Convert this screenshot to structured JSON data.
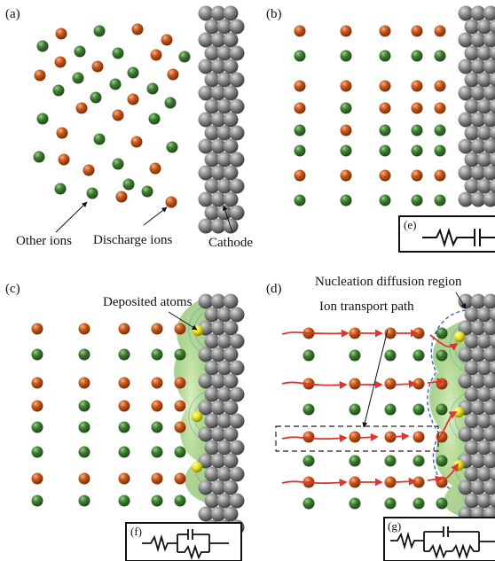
{
  "panels": {
    "a": {
      "label": "(a)"
    },
    "b": {
      "label": "(b)"
    },
    "c": {
      "label": "(c)"
    },
    "d": {
      "label": "(d)"
    }
  },
  "labels": {
    "other_ions": "Other ions",
    "discharge_ions": "Discharge ions",
    "cathode": "Cathode",
    "deposited_atoms": "Deposited atoms",
    "nucleation_region": "Nucleation diffusion region",
    "ion_transport": "Ion transport path"
  },
  "circuits": {
    "e": {
      "label": "(e)"
    },
    "f": {
      "label": "(f)"
    },
    "g": {
      "label": "(g)"
    }
  },
  "legend_colors": {
    "other_ion": "#3f7d33",
    "discharge_ion": "#c8561c",
    "deposited_atom": "#e6e21e",
    "cathode": "#7f7f7f",
    "arrow": "#e0352b",
    "halo": "#9ccb78"
  }
}
